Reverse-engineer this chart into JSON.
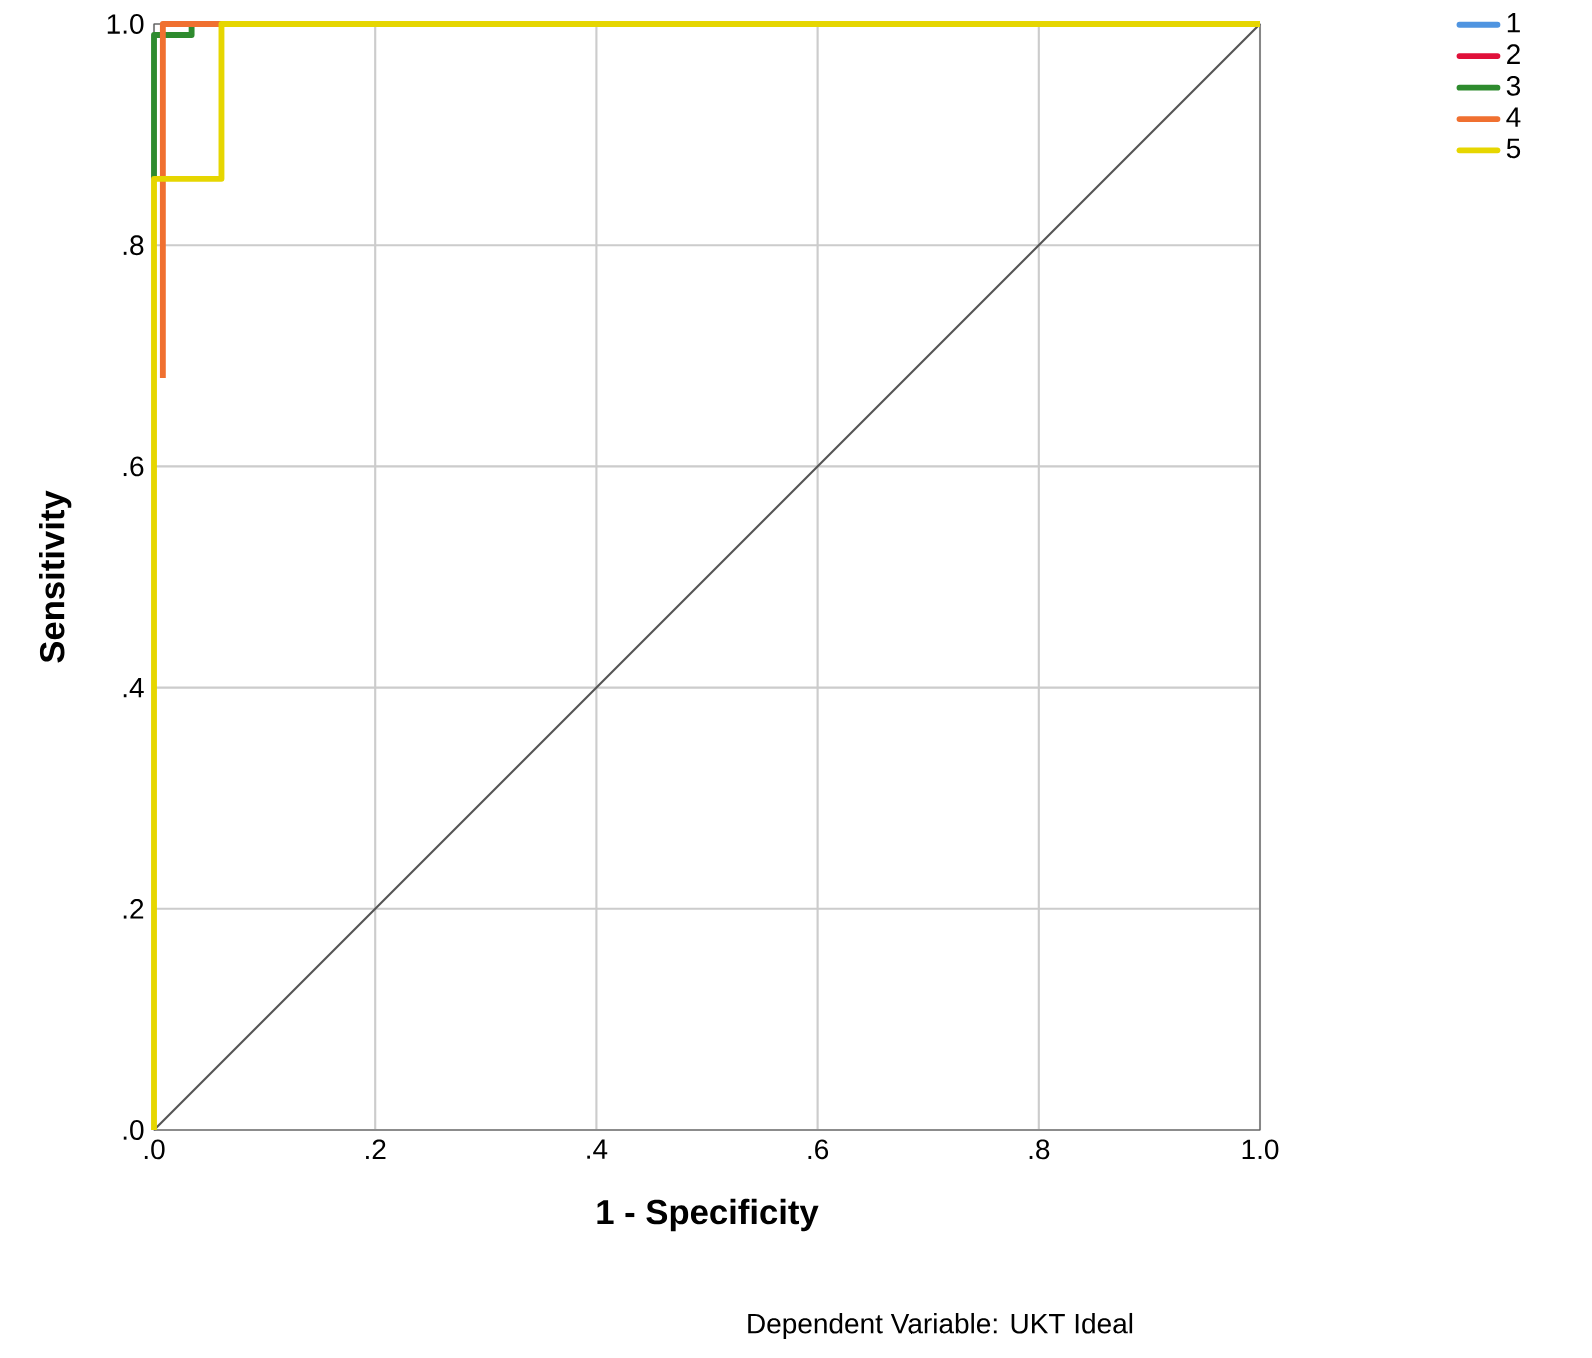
{
  "chart_data": {
    "type": "step",
    "xlabel": "1 - Specificity",
    "ylabel": "Sensitivity",
    "annotations": [
      "Dependent Variable: UKT Ideal"
    ],
    "xlim": [
      0,
      1
    ],
    "ylim": [
      0,
      1
    ],
    "xticks": [
      {
        "value": 0,
        "label": ".0"
      },
      {
        "value": 0.2,
        "label": ".2"
      },
      {
        "value": 0.4,
        "label": ".4"
      },
      {
        "value": 0.6,
        "label": ".6"
      },
      {
        "value": 0.8,
        "label": ".8"
      },
      {
        "value": 1,
        "label": "1.0"
      }
    ],
    "yticks": [
      {
        "value": 0,
        "label": ".0"
      },
      {
        "value": 0.2,
        "label": ".2"
      },
      {
        "value": 0.4,
        "label": ".4"
      },
      {
        "value": 0.6,
        "label": ".6"
      },
      {
        "value": 0.8,
        "label": ".8"
      },
      {
        "value": 1,
        "label": "1.0"
      }
    ],
    "grid": true,
    "legend": "top right",
    "series": [
      {
        "type": "line",
        "color": "#555555",
        "x": [
          0,
          1
        ],
        "values": [
          0,
          1
        ]
      },
      {
        "name": "1",
        "color": "#4f94e0"
      },
      {
        "name": "2",
        "color": "#e0103a"
      },
      {
        "name": "3",
        "color": "#2e8b2e",
        "x": [
          0,
          0,
          0.034,
          0.034
        ],
        "values": [
          0.86,
          0.99,
          0.99,
          1
        ]
      },
      {
        "name": "4",
        "color": "#f07030",
        "x": [
          0.008,
          0.008,
          0.061
        ],
        "values": [
          0.68,
          1,
          1
        ]
      },
      {
        "name": "5",
        "color": "#e6d600",
        "x": [
          0,
          0,
          0.061,
          0.061,
          1
        ],
        "values": [
          0,
          0.86,
          0.86,
          1,
          1
        ]
      }
    ]
  }
}
